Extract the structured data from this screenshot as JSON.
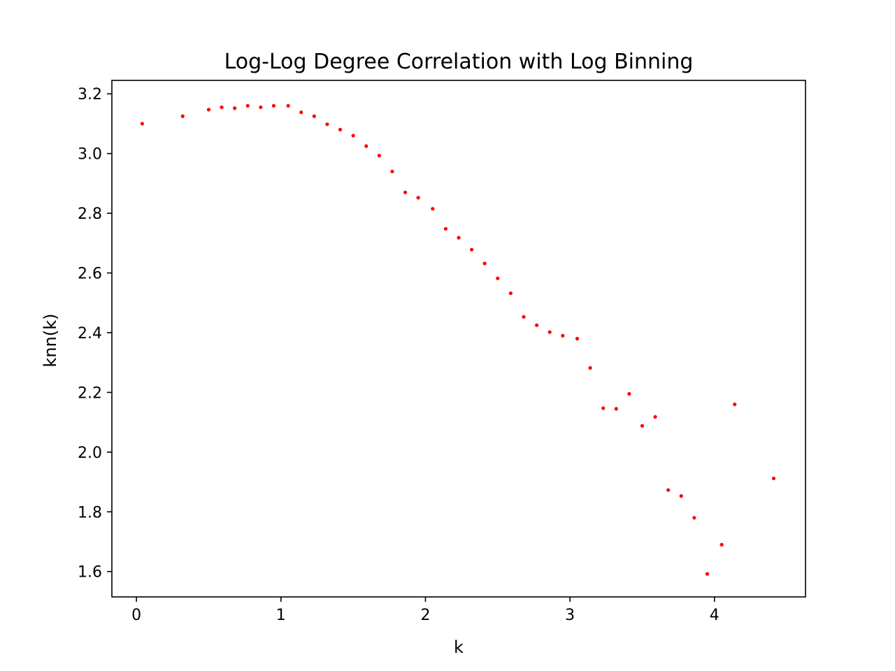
{
  "chart_data": {
    "type": "scatter",
    "title": "Log-Log Degree Correlation with Log Binning",
    "xlabel": "k",
    "ylabel": "knn(k)",
    "xlim": [
      -0.17,
      4.63
    ],
    "ylim": [
      1.515,
      3.245
    ],
    "x_ticks": [
      0,
      1,
      2,
      3,
      4
    ],
    "x_tick_labels": [
      "0",
      "1",
      "2",
      "3",
      "4"
    ],
    "y_ticks": [
      1.6,
      1.8,
      2.0,
      2.2,
      2.4,
      2.6,
      2.8,
      3.0,
      3.2
    ],
    "y_tick_labels": [
      "1.6",
      "1.8",
      "2.0",
      "2.2",
      "2.4",
      "2.6",
      "2.8",
      "3.0",
      "3.2"
    ],
    "grid": false,
    "marker_color": "#ff0000",
    "points": [
      [
        0.04,
        3.1
      ],
      [
        0.32,
        3.125
      ],
      [
        0.5,
        3.147
      ],
      [
        0.59,
        3.155
      ],
      [
        0.68,
        3.152
      ],
      [
        0.77,
        3.16
      ],
      [
        0.86,
        3.155
      ],
      [
        0.95,
        3.16
      ],
      [
        1.05,
        3.16
      ],
      [
        1.14,
        3.138
      ],
      [
        1.23,
        3.125
      ],
      [
        1.32,
        3.098
      ],
      [
        1.41,
        3.08
      ],
      [
        1.5,
        3.06
      ],
      [
        1.59,
        3.025
      ],
      [
        1.68,
        2.993
      ],
      [
        1.77,
        2.94
      ],
      [
        1.86,
        2.87
      ],
      [
        1.95,
        2.852
      ],
      [
        2.05,
        2.815
      ],
      [
        2.14,
        2.748
      ],
      [
        2.23,
        2.718
      ],
      [
        2.32,
        2.678
      ],
      [
        2.41,
        2.632
      ],
      [
        2.5,
        2.582
      ],
      [
        2.59,
        2.532
      ],
      [
        2.68,
        2.453
      ],
      [
        2.77,
        2.425
      ],
      [
        2.86,
        2.402
      ],
      [
        2.95,
        2.39
      ],
      [
        3.05,
        2.38
      ],
      [
        3.14,
        2.282
      ],
      [
        3.23,
        2.147
      ],
      [
        3.32,
        2.145
      ],
      [
        3.41,
        2.195
      ],
      [
        3.5,
        2.088
      ],
      [
        3.59,
        2.118
      ],
      [
        3.68,
        1.873
      ],
      [
        3.77,
        1.853
      ],
      [
        3.86,
        1.78
      ],
      [
        3.95,
        1.592
      ],
      [
        4.05,
        1.69
      ],
      [
        4.14,
        2.16
      ],
      [
        4.41,
        1.912
      ]
    ]
  }
}
